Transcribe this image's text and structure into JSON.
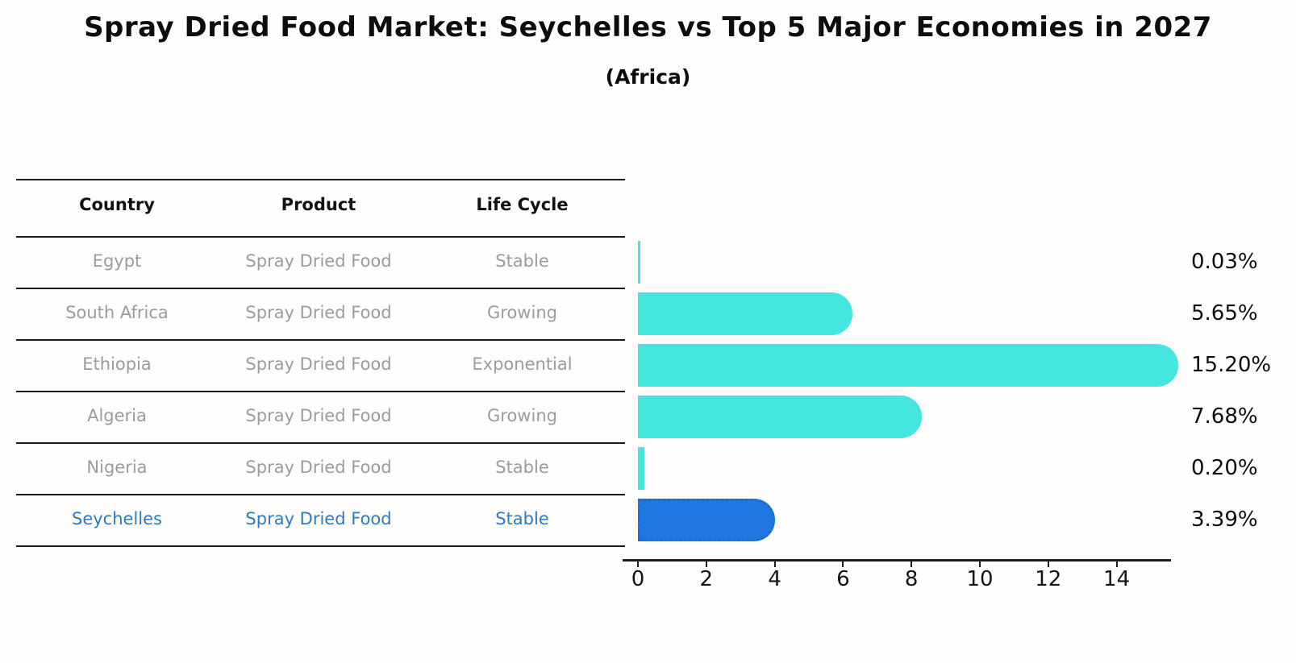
{
  "title": "Spray Dried Food Market: Seychelles vs Top 5 Major Economies in 2027",
  "subtitle": "(Africa)",
  "table": {
    "headers": [
      "Country",
      "Product",
      "Life Cycle"
    ],
    "rows": [
      {
        "country": "Egypt",
        "product": "Spray Dried Food",
        "life_cycle": "Stable"
      },
      {
        "country": "South Africa",
        "product": "Spray Dried Food",
        "life_cycle": "Growing"
      },
      {
        "country": "Ethiopia",
        "product": "Spray Dried Food",
        "life_cycle": "Exponential"
      },
      {
        "country": "Algeria",
        "product": "Spray Dried Food",
        "life_cycle": "Growing"
      },
      {
        "country": "Nigeria",
        "product": "Spray Dried Food",
        "life_cycle": "Stable"
      },
      {
        "country": "Seychelles",
        "product": "Spray Dried Food",
        "life_cycle": "Stable"
      }
    ]
  },
  "chart_data": {
    "type": "bar",
    "orientation": "horizontal",
    "categories": [
      "Egypt",
      "South Africa",
      "Ethiopia",
      "Algeria",
      "Nigeria",
      "Seychelles"
    ],
    "values": [
      0.03,
      5.65,
      15.2,
      7.68,
      0.2,
      3.39
    ],
    "value_labels": [
      "0.03%",
      "5.65%",
      "15.20%",
      "7.68%",
      "0.20%",
      "3.39%"
    ],
    "x_ticks": [
      "0",
      "2",
      "4",
      "6",
      "8",
      "10",
      "12",
      "14"
    ],
    "xlim": [
      0,
      15.5
    ],
    "grid": false,
    "legend": "none",
    "highlight_category": "Seychelles",
    "bar_color": "#45e6e0",
    "highlight_bar_color": "#1e78e0",
    "highlight_border_color": "#1b6cd3",
    "highlight_text_color": "#2b7cc4",
    "row_text_color": "#9b9b9b",
    "axis_color": "#1a1a1a"
  }
}
